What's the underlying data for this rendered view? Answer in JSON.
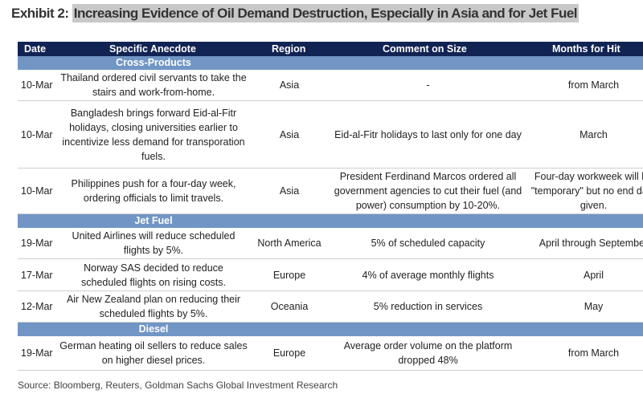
{
  "title": {
    "prefix": "Exhibit 2: ",
    "text": "Increasing Evidence of Oil Demand Destruction, Especially in Asia and for Jet Fuel"
  },
  "columns": [
    "Date",
    "Specific Anecdote",
    "Region",
    "Comment on Size",
    "Months for Hit"
  ],
  "sections": [
    {
      "name": "Cross-Products",
      "rows": [
        {
          "date": "10-Mar",
          "anecdote": "Thailand ordered civil servants to take the stairs and work-from-home.",
          "region": "Asia",
          "comment": "-",
          "months": "from March"
        },
        {
          "date": "10-Mar",
          "anecdote": "Bangladesh brings forward Eid-al-Fitr holidays, closing universities earlier to incentivize less demand for transporation fuels.",
          "region": "Asia",
          "comment": "Eid-al-Fitr holidays to last only for one day",
          "months": "March"
        },
        {
          "date": "10-Mar",
          "anecdote": "Philippines push for a four-day week, ordering officials to limit travels.",
          "region": "Asia",
          "comment": "President Ferdinand Marcos ordered all government agencies to cut their fuel (and power) consumption by 10-20%.",
          "months": "Four-day workweek will be \"temporary\" but no end date given."
        }
      ]
    },
    {
      "name": "Jet Fuel",
      "rows": [
        {
          "date": "19-Mar",
          "anecdote": "United Airlines will reduce scheduled flights by 5%.",
          "region": "North America",
          "comment": "5% of scheduled capacity",
          "months": "April through September"
        },
        {
          "date": "17-Mar",
          "anecdote": "Norway SAS decided to reduce scheduled flights on rising costs.",
          "region": "Europe",
          "comment": "4% of average monthly flights",
          "months": "April"
        },
        {
          "date": "12-Mar",
          "anecdote": "Air New Zealand plan on reducing their scheduled flights by 5%.",
          "region": "Oceania",
          "comment": "5% reduction in services",
          "months": "May"
        }
      ]
    },
    {
      "name": "Diesel",
      "rows": [
        {
          "date": "19-Mar",
          "anecdote": "German heating oil sellers to reduce sales on higher diesel prices.",
          "region": "Europe",
          "comment": "Average order volume on the platform dropped 48%",
          "months": "from March"
        }
      ]
    }
  ],
  "source": "Source: Bloomberg, Reuters, Goldman Sachs Global Investment Research"
}
